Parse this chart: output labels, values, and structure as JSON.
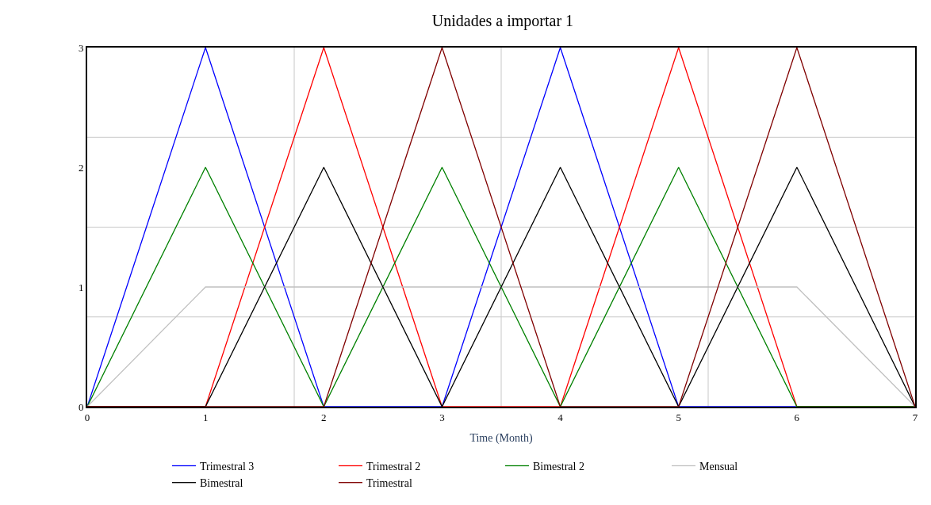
{
  "chart_data": {
    "type": "line",
    "title": "Unidades a importar 1",
    "xlabel": "Time (Month)",
    "x": [
      0,
      1,
      2,
      3,
      4,
      5,
      6,
      7
    ],
    "xlim": [
      0,
      7
    ],
    "ylim": [
      0,
      3
    ],
    "xticks": [
      0,
      1,
      {
        "value": 1.75,
        "label": null
      },
      2,
      3,
      {
        "value": 3.5,
        "label": null
      },
      4,
      5,
      {
        "value": 5.25,
        "label": null
      },
      6,
      7
    ],
    "yticks": [
      0,
      {
        "value": 0.75,
        "label": null
      },
      1,
      {
        "value": 1.5,
        "label": null
      },
      2,
      {
        "value": 2.25,
        "label": null
      },
      3
    ],
    "grid": true,
    "legend": "bottom",
    "marker": "none",
    "line_style": "solid",
    "series": [
      {
        "name": "Trimestral 3",
        "color": "#0000ff",
        "values": [
          0,
          3,
          0,
          0,
          3,
          0,
          0,
          0
        ]
      },
      {
        "name": "Trimestral 2",
        "color": "#ff0000",
        "values": [
          0,
          0,
          3,
          0,
          0,
          3,
          0,
          0
        ]
      },
      {
        "name": "Bimestral 2",
        "color": "#008000",
        "values": [
          0,
          2,
          0,
          2,
          0,
          2,
          0,
          0
        ]
      },
      {
        "name": "Mensual",
        "color": "#c0c0c0",
        "values": [
          0,
          1,
          1,
          1,
          1,
          1,
          1,
          0
        ]
      },
      {
        "name": "Bimestral",
        "color": "#000000",
        "values": [
          0,
          0,
          2,
          0,
          2,
          0,
          2,
          0
        ]
      },
      {
        "name": "Trimestral",
        "color": "#800000",
        "values": [
          0,
          0,
          0,
          3,
          0,
          0,
          3,
          0
        ]
      }
    ]
  }
}
